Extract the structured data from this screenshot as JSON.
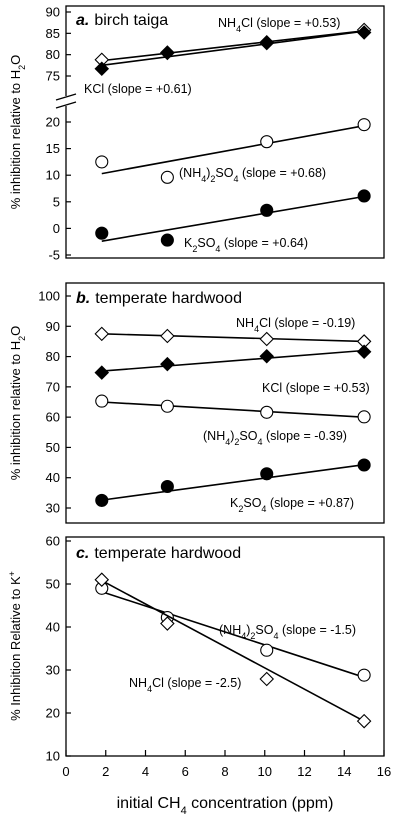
{
  "chart_data": [
    {
      "type": "scatter",
      "panel": "a",
      "title": "birch taiga",
      "ylabel": "% inhibition relative to H2O",
      "axis_break": true,
      "ylim_upper": [
        75,
        90
      ],
      "ylim_lower": [
        -5,
        20
      ],
      "yticks_upper": [
        75,
        80,
        85,
        90
      ],
      "yticks_lower": [
        -5,
        0,
        5,
        10,
        15,
        20
      ],
      "xlim": [
        0,
        16
      ],
      "series": [
        {
          "name": "NH4Cl",
          "label": "(slope = +0.53)",
          "marker": "diamond-open",
          "x": [
            1.8,
            5.1,
            10.1,
            15.0
          ],
          "y": [
            78.8,
            80.5,
            82.9,
            85.8
          ],
          "fit": [
            [
              1.8,
              78.6
            ],
            [
              15.0,
              85.6
            ]
          ]
        },
        {
          "name": "KCl",
          "label": "(slope = +0.61)",
          "marker": "diamond-filled",
          "x": [
            1.8,
            5.1,
            10.1,
            15.0
          ],
          "y": [
            76.7,
            80.4,
            82.7,
            85.2
          ],
          "fit": [
            [
              1.8,
              77.5
            ],
            [
              15.0,
              85.5
            ]
          ]
        },
        {
          "name": "(NH4)2SO4",
          "label": "(slope = +0.68)",
          "marker": "circle-open",
          "x": [
            1.8,
            5.1,
            10.1,
            15.0
          ],
          "y": [
            12.5,
            9.6,
            16.3,
            19.5
          ],
          "fit": [
            [
              1.8,
              10.3
            ],
            [
              15.0,
              19.3
            ]
          ]
        },
        {
          "name": "K2SO4",
          "label": "(slope = +0.64)",
          "marker": "circle-filled",
          "x": [
            1.8,
            5.1,
            10.1,
            15.0
          ],
          "y": [
            -0.9,
            -2.2,
            3.4,
            6.1
          ],
          "fit": [
            [
              1.8,
              -2.4
            ],
            [
              15.0,
              6.0
            ]
          ]
        }
      ]
    },
    {
      "type": "scatter",
      "panel": "b",
      "title": "temperate hardwood",
      "ylabel": "% inhibition relative to H2O",
      "ylim": [
        30,
        100
      ],
      "yticks": [
        30,
        40,
        50,
        60,
        70,
        80,
        90,
        100
      ],
      "xlim": [
        0,
        16
      ],
      "series": [
        {
          "name": "NH4Cl",
          "label": "(slope = -0.19)",
          "marker": "diamond-open",
          "x": [
            1.8,
            5.1,
            10.1,
            15.0
          ],
          "y": [
            87.5,
            86.8,
            85.8,
            85.0
          ],
          "fit": [
            [
              1.8,
              87.5
            ],
            [
              15.0,
              85.0
            ]
          ]
        },
        {
          "name": "KCl",
          "label": "(slope = +0.53)",
          "marker": "diamond-filled",
          "x": [
            1.8,
            5.1,
            10.1,
            15.0
          ],
          "y": [
            74.7,
            77.5,
            80.1,
            81.6
          ],
          "fit": [
            [
              1.8,
              75.2
            ],
            [
              15.0,
              82.0
            ]
          ]
        },
        {
          "name": "(NH4)2SO4",
          "label": "(slope = -0.39)",
          "marker": "circle-open",
          "x": [
            1.8,
            5.1,
            10.1,
            15.0
          ],
          "y": [
            65.3,
            63.6,
            61.6,
            60.1
          ],
          "fit": [
            [
              1.8,
              65.0
            ],
            [
              15.0,
              60.0
            ]
          ]
        },
        {
          "name": "K2SO4",
          "label": "(slope = +0.87)",
          "marker": "circle-filled",
          "x": [
            1.8,
            5.1,
            10.1,
            15.0
          ],
          "y": [
            32.5,
            37.1,
            41.3,
            44.2
          ],
          "fit": [
            [
              1.8,
              32.6
            ],
            [
              15.0,
              44.3
            ]
          ]
        }
      ]
    },
    {
      "type": "scatter",
      "panel": "c",
      "title": "temperate hardwood",
      "ylabel": "% Inhibition Relative to K+",
      "xlabel": "initial CH4 concentration (ppm)",
      "ylim": [
        10,
        60
      ],
      "yticks": [
        10,
        20,
        30,
        40,
        50,
        60
      ],
      "xlim": [
        0,
        16
      ],
      "xticks": [
        0,
        2,
        4,
        6,
        8,
        10,
        12,
        14,
        16
      ],
      "series": [
        {
          "name": "(NH4)2SO4",
          "label": "(slope = -1.5)",
          "marker": "circle-open",
          "x": [
            1.8,
            5.1,
            10.1,
            15.0
          ],
          "y": [
            49.0,
            42.2,
            34.6,
            28.8
          ],
          "fit": [
            [
              1.8,
              48.2
            ],
            [
              15.0,
              28.3
            ]
          ]
        },
        {
          "name": "NH4Cl",
          "label": "(slope = -2.5)",
          "marker": "diamond-open",
          "x": [
            1.8,
            5.1,
            10.1,
            15.0
          ],
          "y": [
            51.0,
            40.8,
            27.9,
            18.1
          ],
          "fit": [
            [
              1.8,
              50.8
            ],
            [
              15.0,
              18.1
            ]
          ]
        }
      ]
    }
  ]
}
